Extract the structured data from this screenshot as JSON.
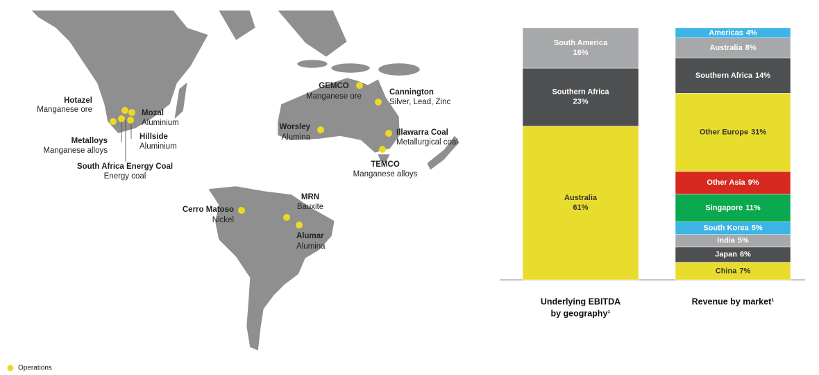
{
  "map": {
    "legend": "Operations",
    "operations": [
      {
        "name": "Hotazel",
        "product": "Manganese ore"
      },
      {
        "name": "Mozal",
        "product": "Aluminium"
      },
      {
        "name": "Metalloys",
        "product": "Manganese alloys"
      },
      {
        "name": "Hillside",
        "product": "Aluminium"
      },
      {
        "name": "South Africa Energy Coal",
        "product": "Energy coal"
      },
      {
        "name": "GEMCO",
        "product": "Manganese ore"
      },
      {
        "name": "Cannington",
        "product": "Silver, Lead, Zinc"
      },
      {
        "name": "Worsley",
        "product": "Alumina"
      },
      {
        "name": "Illawarra Coal",
        "product": "Metallurgical coal"
      },
      {
        "name": "TEMCO",
        "product": "Manganese alloys"
      },
      {
        "name": "Cerro Matoso",
        "product": "Nickel"
      },
      {
        "name": "MRN",
        "product": "Bauxite"
      },
      {
        "name": "Alumar",
        "product": "Alumina"
      }
    ]
  },
  "chart_data": [
    {
      "type": "stacked-bar",
      "label_style": "stacked",
      "title": [
        "Underlying EBITDA",
        "by geography¹"
      ],
      "series": [
        {
          "name": "Australia",
          "color": "#e8dc2c",
          "values": [
            61
          ],
          "value_labels": [
            "61%"
          ]
        },
        {
          "name": "Southern Africa",
          "color": "#4d4f51",
          "values": [
            23
          ],
          "value_labels": [
            "23%"
          ]
        },
        {
          "name": "South America",
          "color": "#a7a8aa",
          "values": [
            16
          ],
          "value_labels": [
            "16%"
          ]
        }
      ]
    },
    {
      "type": "stacked-bar",
      "label_style": "inline",
      "title": [
        "Revenue by market¹"
      ],
      "series": [
        {
          "name": "China",
          "color": "#e8dc2c",
          "values": [
            7
          ],
          "value_labels": [
            "7%"
          ]
        },
        {
          "name": "Japan",
          "color": "#4d4f51",
          "values": [
            6
          ],
          "value_labels": [
            "6%"
          ]
        },
        {
          "name": "India",
          "color": "#a7a8aa",
          "values": [
            5
          ],
          "value_labels": [
            "5%"
          ]
        },
        {
          "name": "South Korea",
          "color": "#3cb4e5",
          "values": [
            5
          ],
          "value_labels": [
            "5%"
          ]
        },
        {
          "name": "Singapore",
          "color": "#0aa84f",
          "values": [
            11
          ],
          "value_labels": [
            "11%"
          ]
        },
        {
          "name": "Other Asia",
          "color": "#d7291f",
          "values": [
            9
          ],
          "value_labels": [
            "9%"
          ]
        },
        {
          "name": "Other Europe",
          "color": "#e8dc2c",
          "values": [
            31
          ],
          "value_labels": [
            "31%"
          ]
        },
        {
          "name": "Southern Africa",
          "color": "#4d4f51",
          "values": [
            14
          ],
          "value_labels": [
            "14%"
          ]
        },
        {
          "name": "Australia",
          "color": "#a7a8aa",
          "values": [
            8
          ],
          "value_labels": [
            "8%"
          ]
        },
        {
          "name": "Americas",
          "color": "#3cb4e5",
          "values": [
            4
          ],
          "value_labels": [
            "4%"
          ]
        }
      ]
    }
  ]
}
